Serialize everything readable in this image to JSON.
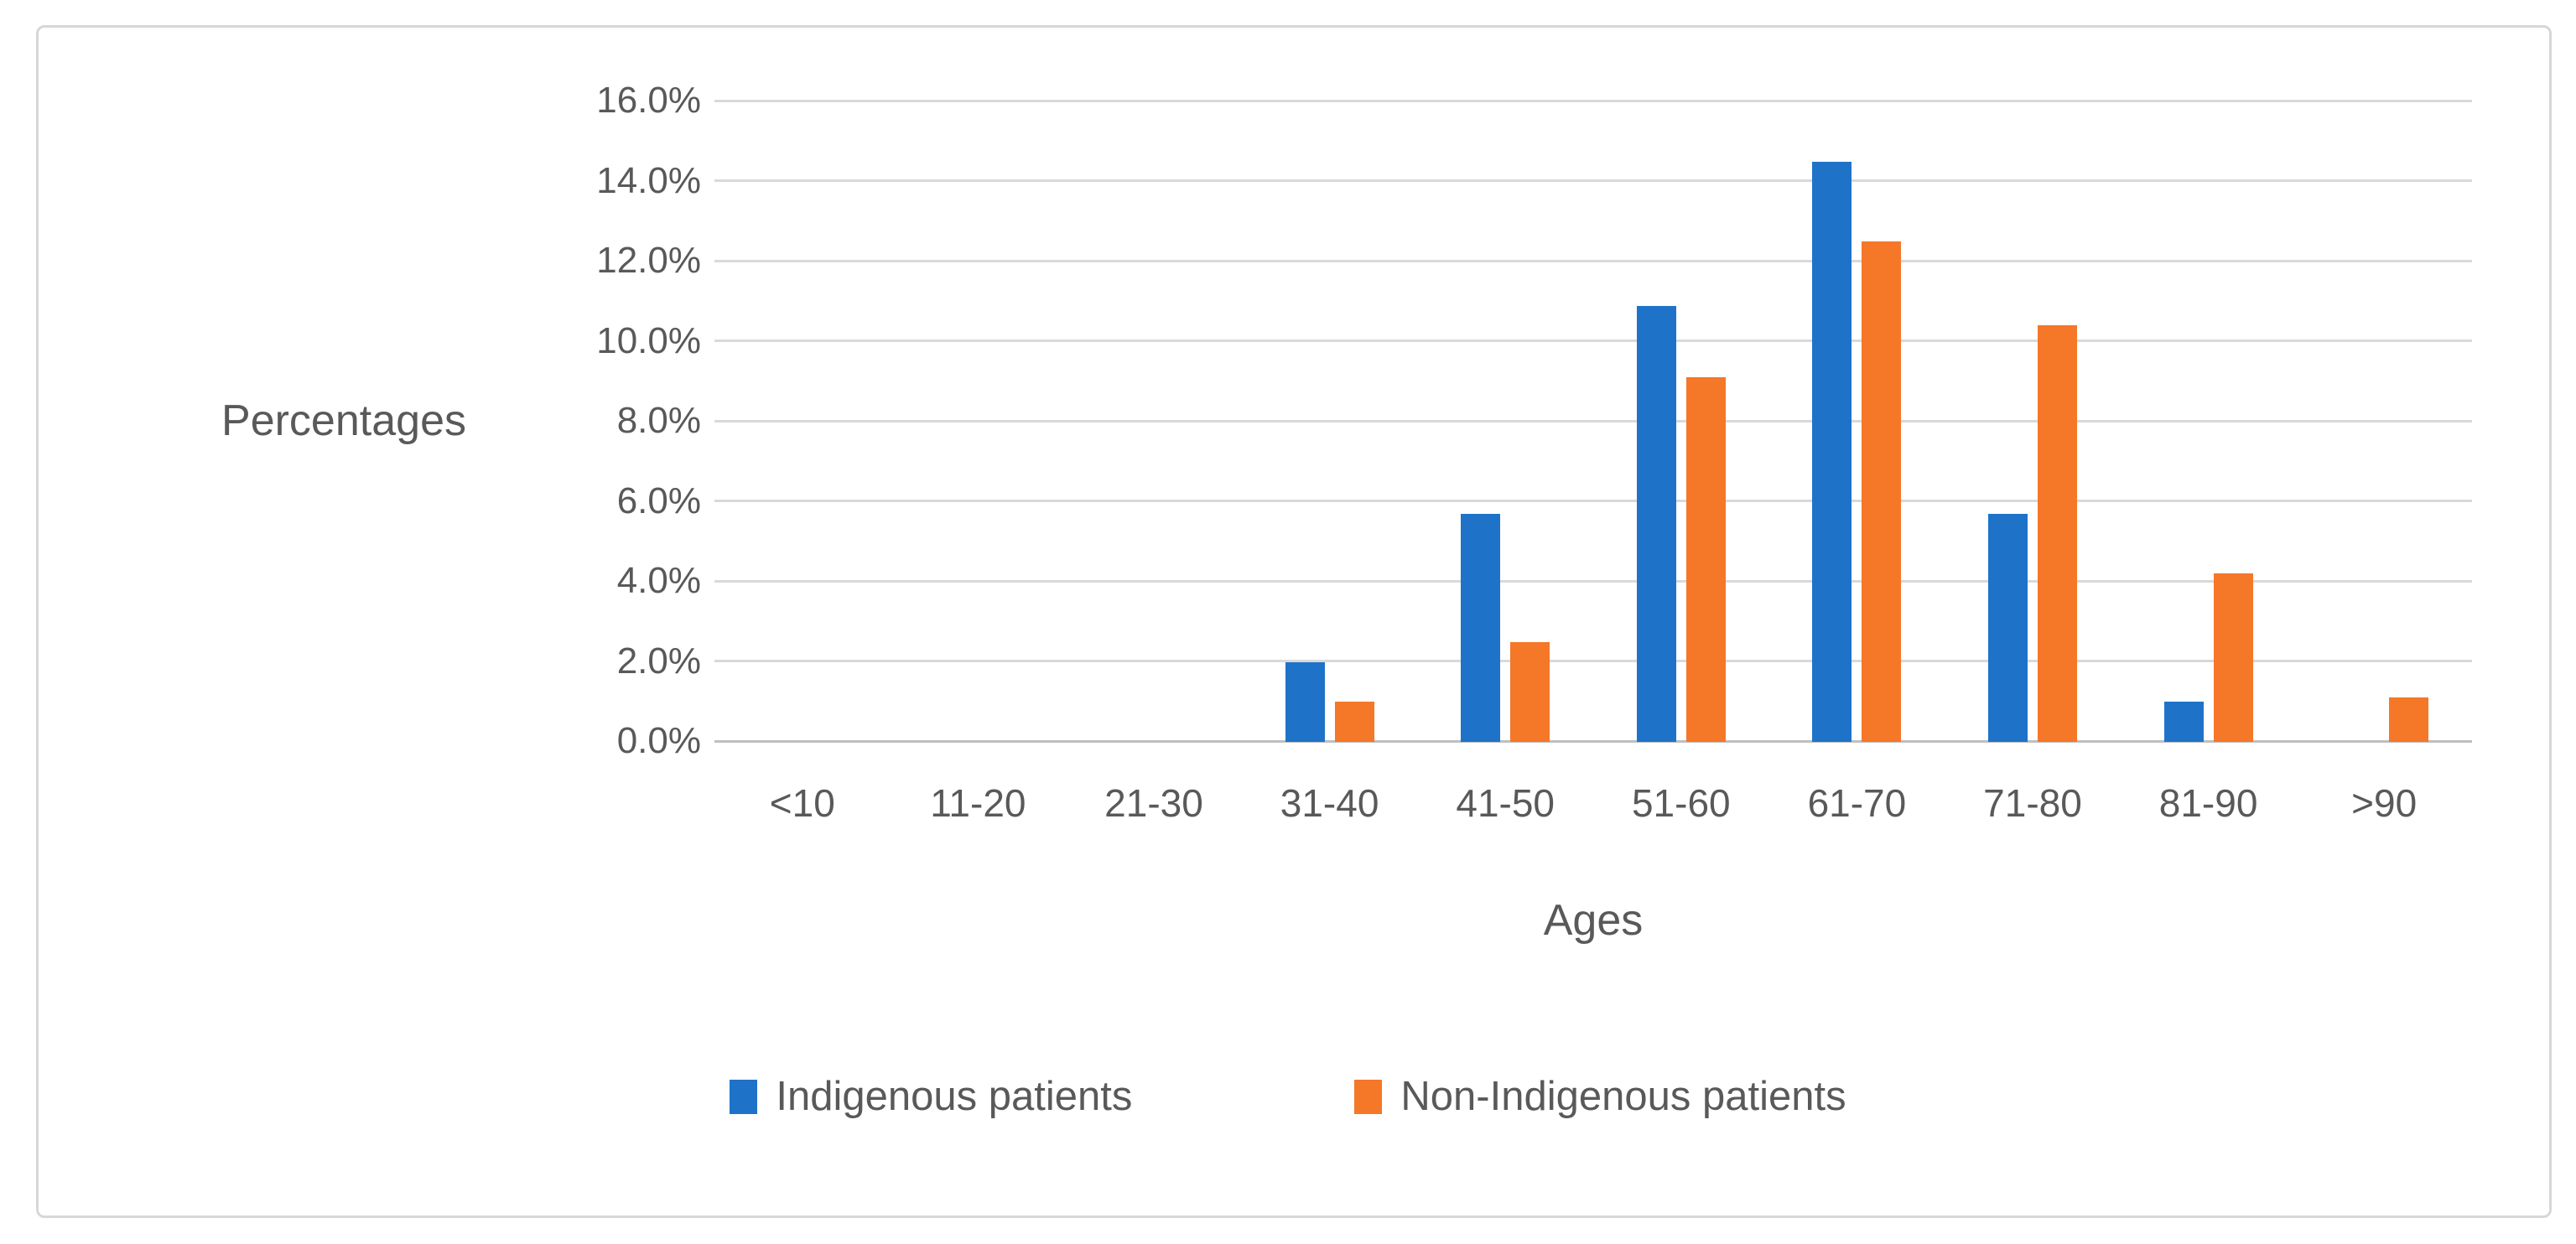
{
  "chart_data": {
    "type": "bar",
    "title": "",
    "categories": [
      "<10",
      "11-20",
      "21-30",
      "31-40",
      "41-50",
      "51-60",
      "61-70",
      "71-80",
      "81-90",
      ">90"
    ],
    "series": [
      {
        "name": "Indigenous patients",
        "color": "#1E73C8",
        "values": [
          0,
          0,
          0,
          2.0,
          5.7,
          10.9,
          14.5,
          5.7,
          1.0,
          0
        ]
      },
      {
        "name": "Non-Indigenous patients",
        "color": "#F57728",
        "values": [
          0,
          0,
          0,
          1.0,
          2.5,
          9.1,
          12.5,
          10.4,
          4.2,
          1.1
        ]
      }
    ],
    "xlabel": "Ages",
    "ylabel": "Percentages",
    "y_ticks": [
      "16.0%",
      "14.0%",
      "12.0%",
      "10.0%",
      "8.0%",
      "6.0%",
      "4.0%",
      "2.0%",
      "0.0%"
    ],
    "ylim": [
      0,
      16
    ],
    "y_step": 2,
    "grid": true,
    "legend_position": "bottom",
    "colors": {
      "grid": "#D9D9D9",
      "axis": "#BFBFBF",
      "text": "#595959",
      "frame_border": "#D7D7D7"
    }
  }
}
